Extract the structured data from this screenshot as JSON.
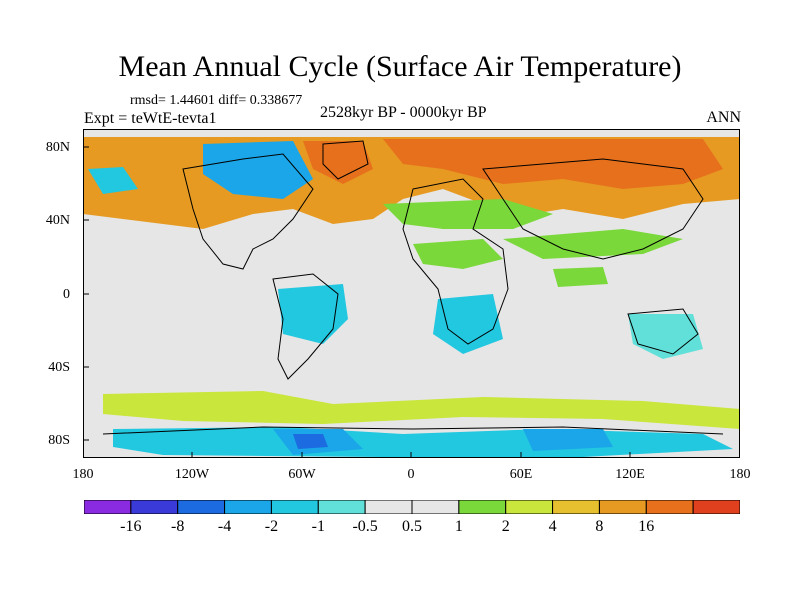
{
  "title": "Mean Annual Cycle (Surface Air Temperature)",
  "stats": "rmsd= 1.44601 diff= 0.338677",
  "expt": "Expt = teWtE-tevta1",
  "period": "2528kyr BP - 0000kyr BP",
  "season": "ANN",
  "y_ticks": [
    "80N",
    "40N",
    "0",
    "40S",
    "80S"
  ],
  "x_ticks": [
    "180",
    "120W",
    "60W",
    "0",
    "60E",
    "120E",
    "180"
  ],
  "colorbar": {
    "colors": [
      "#8a2be2",
      "#3a3ad8",
      "#1c6be0",
      "#1aa6e8",
      "#22c7e0",
      "#60e0d8",
      "#e6e6e6",
      "#e6e6e6",
      "#7ad83a",
      "#c8e63c",
      "#e6c02e",
      "#e69a22",
      "#e6701c",
      "#e0401e"
    ],
    "labels": [
      "-16",
      "-8",
      "-4",
      "-2",
      "-1",
      "-0.5",
      "0.5",
      "1",
      "2",
      "4",
      "8",
      "16"
    ]
  },
  "map_colors": {
    "ocean": "#e6e6e6",
    "warm_strong": "#e6701c",
    "warm": "#e69a22",
    "warm_mild": "#e6c02e",
    "green_light": "#c8e63c",
    "green": "#7ad83a",
    "cyan": "#22c7e0",
    "cyan_light": "#60e0d8",
    "blue": "#1aa6e8",
    "blue_dark": "#1c6be0"
  }
}
